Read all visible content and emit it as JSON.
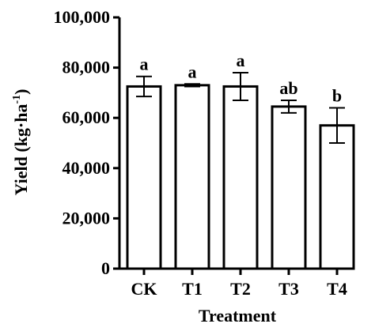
{
  "chart_data": {
    "type": "bar",
    "categories": [
      "CK",
      "T1",
      "T2",
      "T3",
      "T4"
    ],
    "values": [
      72500,
      73000,
      72500,
      64500,
      57000
    ],
    "error": [
      4000,
      500,
      5500,
      2500,
      7000
    ],
    "significance": [
      "a",
      "a",
      "a",
      "ab",
      "b"
    ],
    "xlabel": "Treatment",
    "ylabel_main": "Yield (kg·ha",
    "ylabel_sup": "-1",
    "ylabel_close": ")",
    "ylim": [
      0,
      100000
    ],
    "yticks": [
      0,
      20000,
      40000,
      60000,
      80000,
      100000
    ],
    "ytick_labels": [
      "0",
      "20,000",
      "40,000",
      "60,000",
      "80,000",
      "100,000"
    ],
    "grid": false,
    "legend": "none",
    "bar_fill": "#ffffff",
    "bar_stroke": "#000000"
  }
}
